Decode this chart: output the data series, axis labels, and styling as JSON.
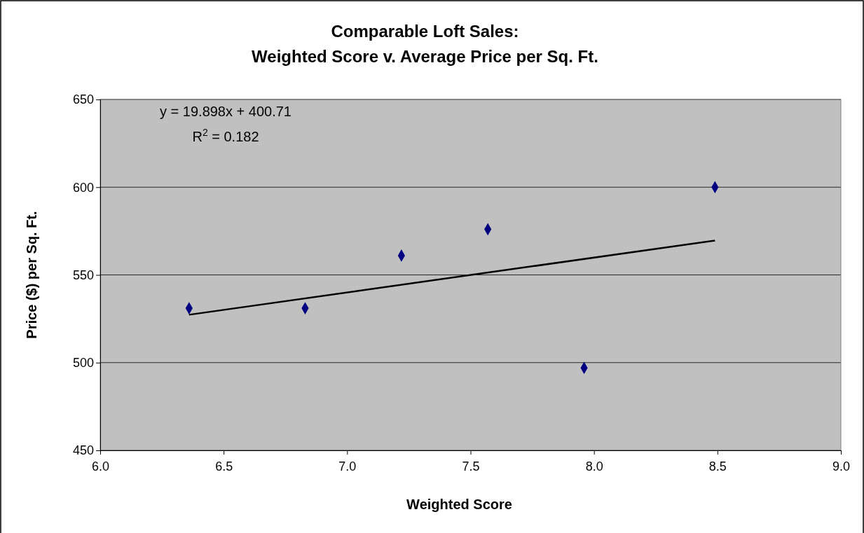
{
  "chart_data": {
    "type": "scatter",
    "title": "Comparable Loft Sales:\nWeighted Score v. Average Price per Sq. Ft.",
    "xlabel": "Weighted Score",
    "ylabel": "Price ($) per Sq. Ft.",
    "xlim": [
      6.0,
      9.0
    ],
    "xticks": [
      {
        "value": 6,
        "label": "6.0"
      },
      {
        "value": 6.5,
        "label": "6.5"
      },
      {
        "value": 7,
        "label": "7.0"
      },
      {
        "value": 7.5,
        "label": "7.5"
      },
      {
        "value": 8,
        "label": "8.0"
      },
      {
        "value": 8.5,
        "label": "8.5"
      },
      {
        "value": 9,
        "label": "9.0"
      }
    ],
    "ylim": [
      450,
      650
    ],
    "yticks": [
      450,
      500,
      550,
      600,
      650
    ],
    "grid": "y",
    "series": [
      {
        "color": "#000080",
        "marker": "diamond",
        "x": [
          6.36,
          6.83,
          7.22,
          7.57,
          7.96,
          8.49
        ],
        "values": [
          531,
          531,
          561,
          576,
          497,
          600
        ]
      },
      {
        "type": "line",
        "color": "#000000",
        "marker": "none",
        "line_style": "solid",
        "x": [
          6.36,
          8.49
        ],
        "values": [
          527.3,
          569.6
        ]
      }
    ],
    "annotations": [
      "y = 19.898x + 400.71",
      "R$^{2}$ = 0.182"
    ]
  }
}
